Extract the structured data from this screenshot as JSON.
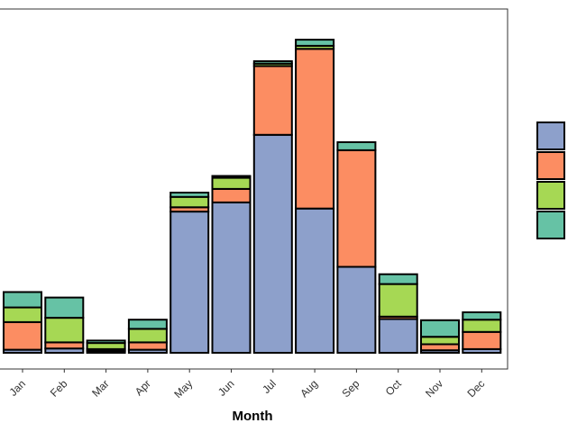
{
  "chart_data": {
    "type": "bar",
    "stacked": true,
    "xlabel": "Month",
    "categories": [
      "Jan",
      "Feb",
      "Mar",
      "Apr",
      "May",
      "Jun",
      "Jul",
      "Aug",
      "Sep",
      "Oct",
      "Nov",
      "Dec"
    ],
    "series": [
      {
        "color": "#8DA0CB",
        "values": [
          5,
          7,
          3,
          5,
          230,
          245,
          355,
          235,
          140,
          55,
          4,
          6
        ]
      },
      {
        "color": "#FC8D62",
        "values": [
          45,
          10,
          3,
          12,
          7,
          22,
          112,
          260,
          190,
          4,
          10,
          28
        ]
      },
      {
        "color": "#A6D854",
        "values": [
          24,
          40,
          10,
          22,
          17,
          18,
          4,
          5,
          0,
          53,
          12,
          20
        ]
      },
      {
        "color": "#66C2A5",
        "values": [
          25,
          33,
          4,
          15,
          7,
          3,
          4,
          10,
          13,
          16,
          27,
          12
        ]
      }
    ],
    "ylim": [
      0,
      560
    ],
    "grid": false,
    "legend_position": "right"
  }
}
